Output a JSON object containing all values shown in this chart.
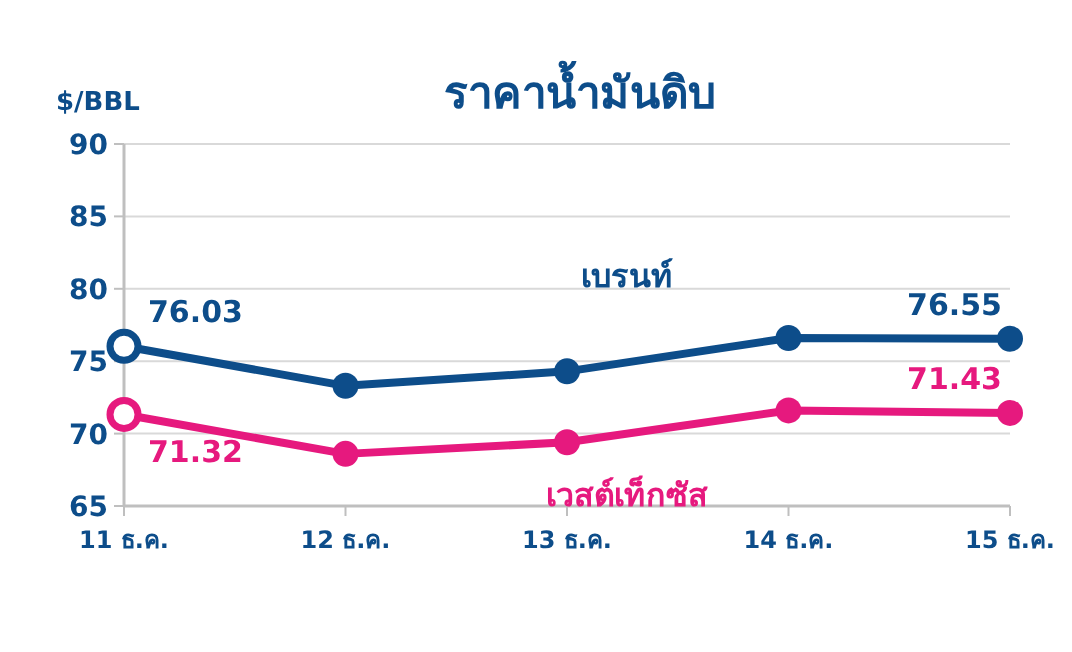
{
  "chart_data": {
    "type": "line",
    "title": "ราคาน้ำมันดิบ",
    "ylabel": "$/BBL",
    "categories": [
      "11 ธ.ค.",
      "12 ธ.ค.",
      "13 ธ.ค.",
      "14 ธ.ค.",
      "15 ธ.ค."
    ],
    "series": [
      {
        "name": "เบรนท์",
        "color": "#0d4d8a",
        "values": [
          76.03,
          73.3,
          74.3,
          76.6,
          76.55
        ],
        "value_labels": [
          "76.03",
          null,
          null,
          null,
          "76.55"
        ]
      },
      {
        "name": "เวสต์เท็กซัส",
        "color": "#e6197e",
        "values": [
          71.32,
          68.6,
          69.4,
          71.6,
          71.43
        ],
        "value_labels": [
          "71.32",
          null,
          null,
          null,
          "71.43"
        ]
      }
    ],
    "ylim": [
      65,
      90
    ],
    "yticks": [
      65,
      70,
      75,
      80,
      85,
      90
    ],
    "grid": "y",
    "marker": "circle",
    "line_style": "solid"
  }
}
